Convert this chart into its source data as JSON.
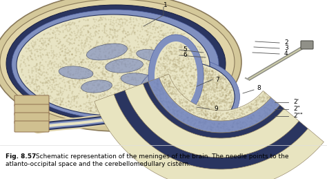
{
  "caption_bold": "Fig. 8.57",
  "caption_text": "  Schematic representation of the meninges of the brain. The needle points to the\natlanto-occipital space and the cerebellomedullary cistern.",
  "background_color": "#ffffff",
  "fig_width": 4.74,
  "fig_height": 2.59,
  "dpi": 100,
  "colors": {
    "skull_bone": "#d4c89a",
    "skull_edge": "#8a7a5a",
    "skull_inner": "#e0d4a8",
    "dura": "#2a3560",
    "dura_edge": "#1a2040",
    "arachnoid": "#8090c0",
    "arachnoid_edge": "#5060a0",
    "brain_fill": "#e8e4c4",
    "brain_stipple": "#a09060",
    "csf_fill": "#c0c8e0",
    "layer_cream": "#e8e4c0",
    "layer_blue": "#8090c0",
    "layer_dark": "#2a3560",
    "layer_bone": "#d4c89a",
    "needle_body": "#888880",
    "needle_tip": "#a0a098",
    "line_color": "#505050",
    "label_color": "#000000",
    "spine_bone": "#d0c090",
    "spine_edge": "#907050"
  }
}
